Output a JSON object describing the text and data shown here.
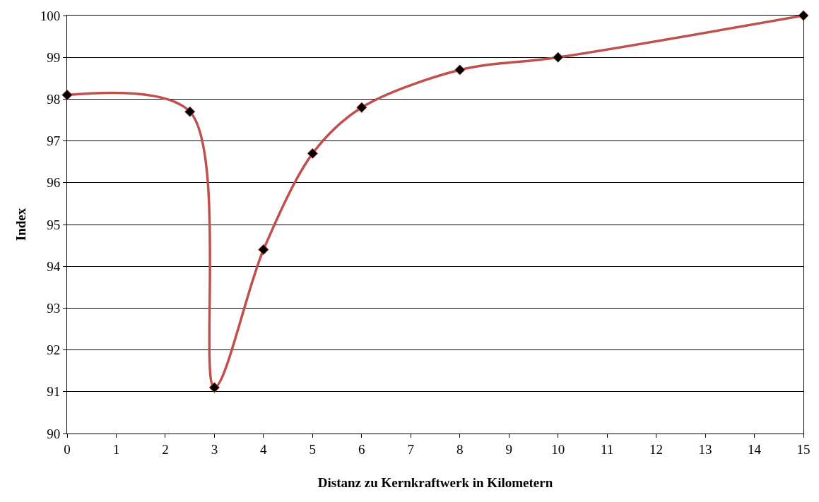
{
  "chart_data": {
    "type": "line",
    "xlabel": "Distanz zu Kernkraftwerk in Kilometern",
    "ylabel": "Index",
    "x": [
      0,
      2.5,
      3,
      4,
      5,
      6,
      8,
      10,
      15
    ],
    "series": [
      {
        "color": "#c0504d",
        "values": [
          98.1,
          97.7,
          91.1,
          94.4,
          96.7,
          97.8,
          98.7,
          99.0,
          100.0
        ]
      }
    ],
    "xlim": [
      0,
      15
    ],
    "xticks": [
      0,
      1,
      2,
      3,
      4,
      5,
      6,
      7,
      8,
      9,
      10,
      11,
      12,
      13,
      14,
      15
    ],
    "ylim": [
      90,
      100
    ],
    "yticks": [
      90,
      91,
      92,
      93,
      94,
      95,
      96,
      97,
      98,
      99,
      100
    ],
    "grid": "y",
    "marker": "diamond",
    "line_style": "solid"
  }
}
